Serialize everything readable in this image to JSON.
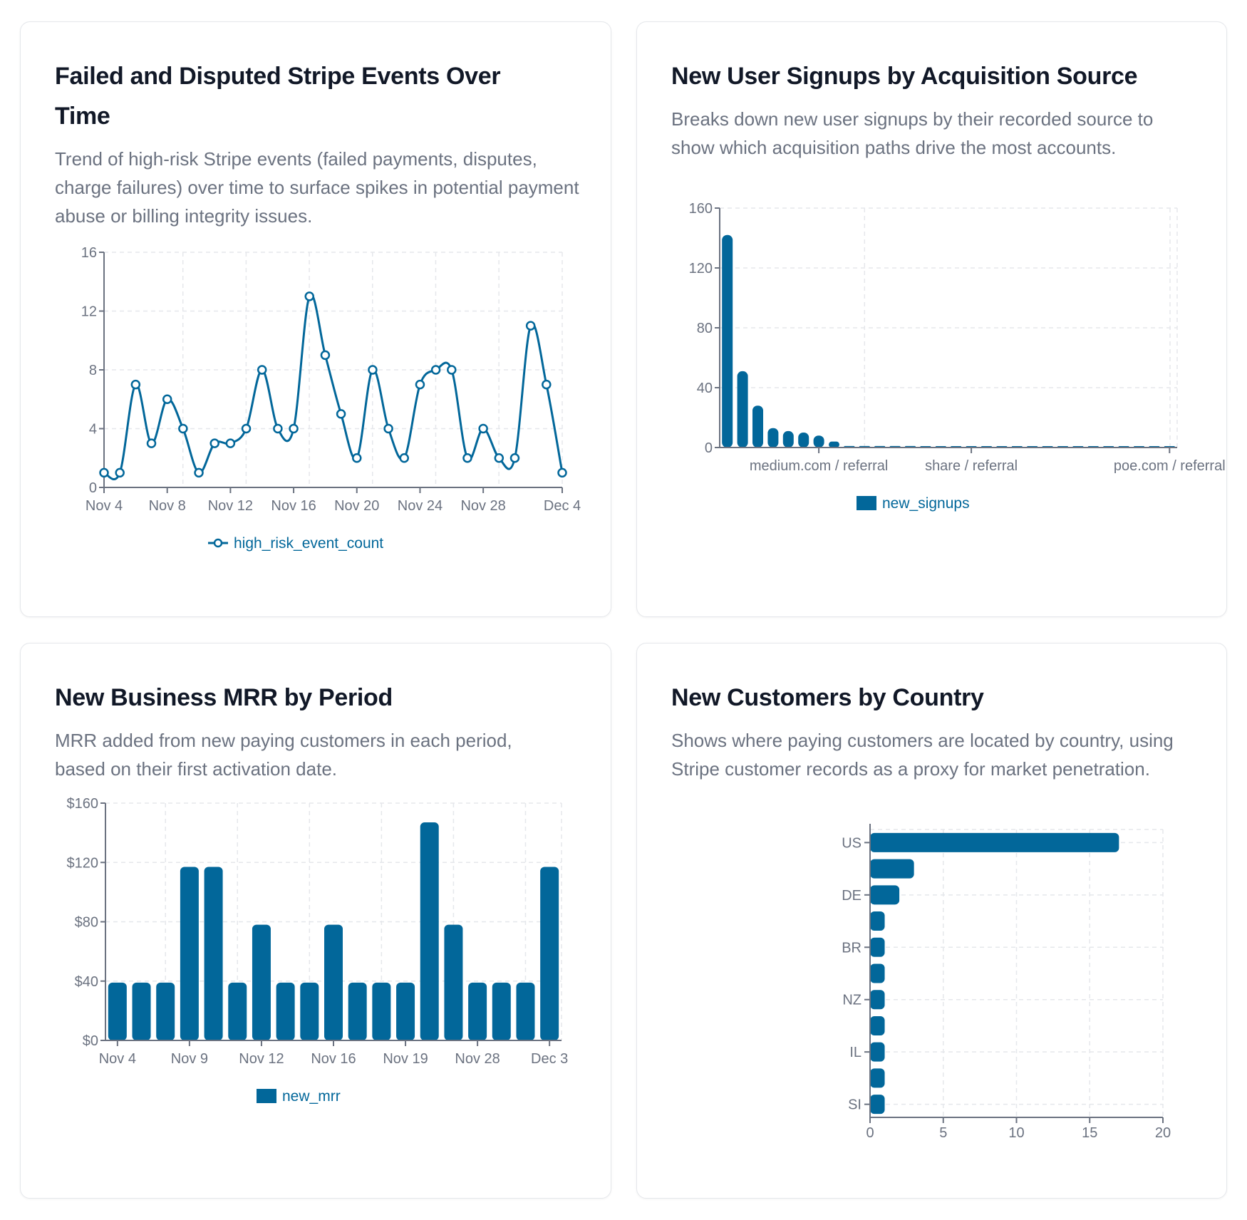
{
  "colors": {
    "series": "#02679a",
    "axis": "#6b7280",
    "grid": "#e5e7eb",
    "title": "#111827",
    "text": "#6b7280"
  },
  "cards": [
    {
      "title": "Failed and Disputed Stripe Events Over Time",
      "description": "Trend of high-risk Stripe events (failed payments, disputes, charge failures) over time to surface spikes in potential payment abuse or billing integrity issues."
    },
    {
      "title": "New User Signups by Acquisition Source",
      "description": "Breaks down new user signups by their recorded source to show which acquisition paths drive the most accounts."
    },
    {
      "title": "New Business MRR by Period",
      "description": "MRR added from new paying customers in each period, based on their first activation date."
    },
    {
      "title": "New Customers by Country",
      "description": "Shows where paying customers are located by country, using Stripe customer records as a proxy for market penetration."
    }
  ],
  "chart_data": [
    {
      "type": "line",
      "series": [
        {
          "name": "high_risk_event_count",
          "values": [
            1,
            1,
            7,
            3,
            6,
            4,
            1,
            3,
            3,
            4,
            8,
            4,
            4,
            13,
            9,
            5,
            2,
            8,
            4,
            2,
            7,
            8,
            8,
            2,
            4,
            2,
            2,
            11,
            7,
            1
          ]
        }
      ],
      "x_ticks": [
        {
          "index": 0,
          "label": "Nov 4"
        },
        {
          "index": 4,
          "label": "Nov 8"
        },
        {
          "index": 8,
          "label": "Nov 12"
        },
        {
          "index": 12,
          "label": "Nov 16"
        },
        {
          "index": 16,
          "label": "Nov 20"
        },
        {
          "index": 20,
          "label": "Nov 24"
        },
        {
          "index": 24,
          "label": "Nov 28"
        },
        {
          "index": 29,
          "label": "Dec 4"
        }
      ],
      "y_ticks": [
        "0",
        "4",
        "8",
        "12",
        "16"
      ],
      "ylim": [
        0,
        16
      ],
      "grid": true,
      "legend": "bottom",
      "markers": "hollow-circle"
    },
    {
      "type": "bar",
      "series": [
        {
          "name": "new_signups",
          "values": [
            142,
            51,
            28,
            13,
            11,
            10,
            8,
            4,
            1,
            1,
            1,
            1,
            1,
            0,
            0,
            0,
            0,
            0,
            0,
            0,
            0,
            0,
            0,
            0,
            0,
            0,
            0,
            0,
            0,
            0
          ]
        }
      ],
      "x_ticks": [
        {
          "index": 6,
          "label": "medium.com / referral"
        },
        {
          "index": 16,
          "label": "share / referral"
        },
        {
          "index": 29,
          "label": "poe.com / referral"
        }
      ],
      "y_ticks": [
        "0",
        "40",
        "80",
        "120",
        "160"
      ],
      "ylim": [
        0,
        160
      ],
      "grid": true,
      "legend": "bottom"
    },
    {
      "type": "bar",
      "series": [
        {
          "name": "new_mrr",
          "values": [
            39,
            39,
            39,
            117,
            117,
            39,
            78,
            39,
            39,
            78,
            39,
            39,
            39,
            147,
            78,
            39,
            39,
            39,
            117
          ]
        }
      ],
      "x_ticks": [
        {
          "index": 0,
          "label": "Nov 4"
        },
        {
          "index": 3,
          "label": "Nov 9"
        },
        {
          "index": 6,
          "label": "Nov 12"
        },
        {
          "index": 9,
          "label": "Nov 16"
        },
        {
          "index": 12,
          "label": "Nov 19"
        },
        {
          "index": 15,
          "label": "Nov 28"
        },
        {
          "index": 18,
          "label": "Dec 3"
        }
      ],
      "y_ticks": [
        "$0",
        "$40",
        "$80",
        "$120",
        "$160"
      ],
      "ylim": [
        0,
        160
      ],
      "grid": true,
      "legend": "bottom"
    },
    {
      "type": "bar",
      "orientation": "horizontal",
      "values": [
        17,
        3,
        2,
        1,
        1,
        1,
        1,
        1,
        1,
        1,
        1
      ],
      "y_ticks": [
        {
          "index": 0,
          "label": "US"
        },
        {
          "index": 2,
          "label": "DE"
        },
        {
          "index": 4,
          "label": "BR"
        },
        {
          "index": 6,
          "label": "NZ"
        },
        {
          "index": 8,
          "label": "IL"
        },
        {
          "index": 10,
          "label": "SI"
        }
      ],
      "x_ticks": [
        "0",
        "5",
        "10",
        "15",
        "20"
      ],
      "xlim": [
        0,
        20
      ],
      "grid": true
    }
  ]
}
